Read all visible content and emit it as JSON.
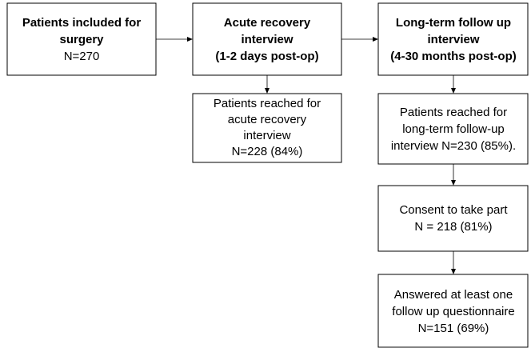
{
  "nodes": [
    {
      "lines": [
        "Patients included for",
        "surgery",
        "N=270"
      ]
    },
    {
      "lines": [
        "Acute recovery",
        "interview",
        "(1-2 days post-op)"
      ]
    },
    {
      "lines": [
        "Long-term follow up",
        "interview",
        "(4-30 months post-op)"
      ]
    },
    {
      "lines": [
        "Patients reached for",
        "acute recovery",
        "interview",
        "N=228 (84%)"
      ]
    },
    {
      "lines": [
        "Patients reached for",
        "long-term follow-up",
        "interview N=230 (85%)."
      ]
    },
    {
      "lines": [
        "Consent to take part",
        "N = 218 (81%)"
      ]
    },
    {
      "lines": [
        "Answered at least one",
        "follow up questionnaire",
        "N=151 (69%)"
      ]
    }
  ]
}
